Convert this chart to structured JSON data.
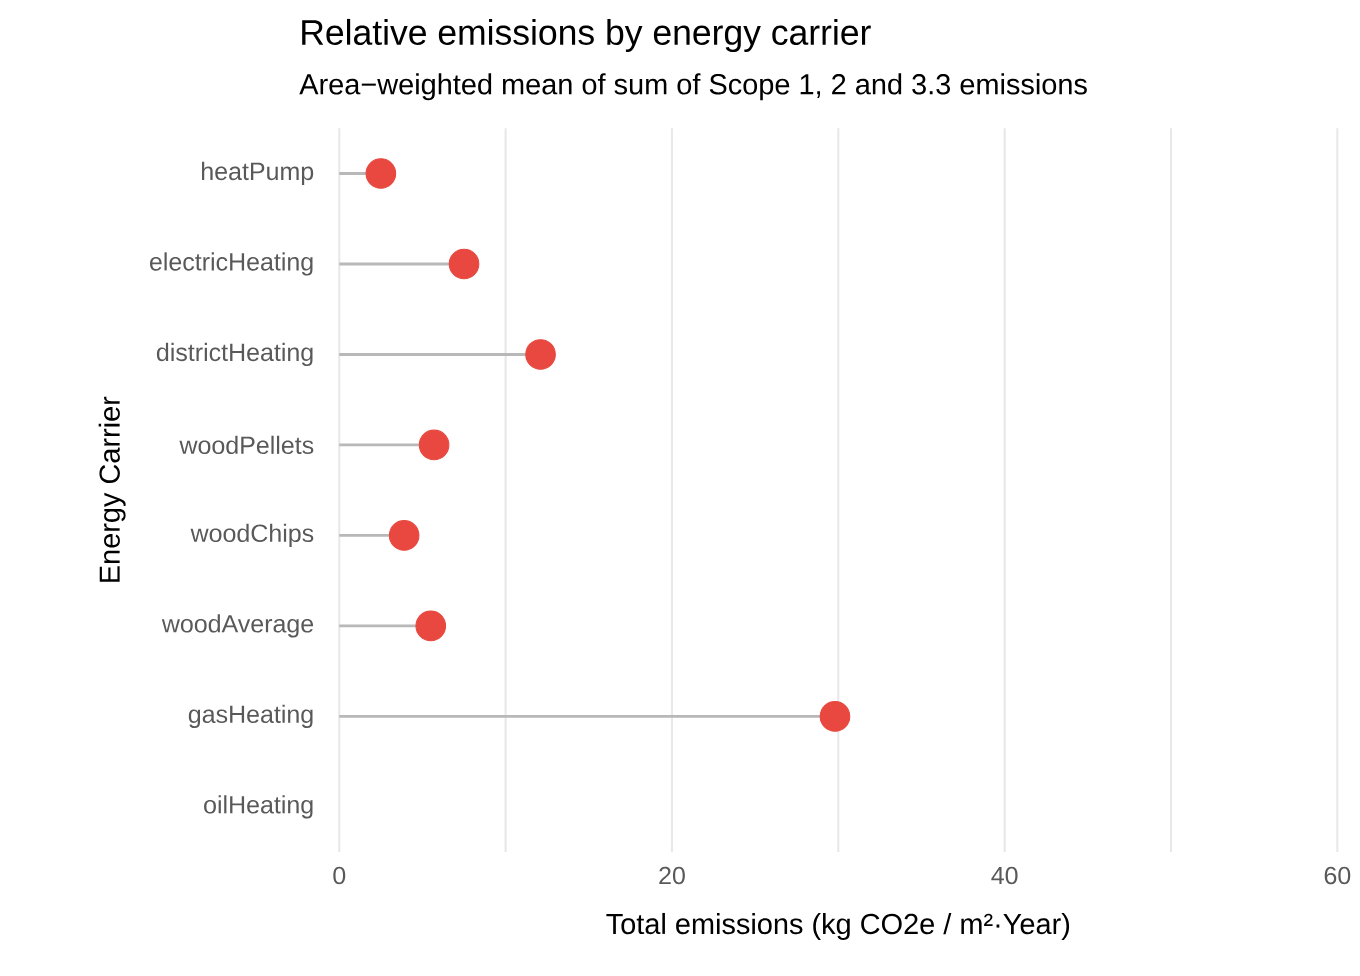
{
  "chart_data": {
    "type": "lollipop",
    "orientation": "horizontal",
    "title": "Relative emissions by energy carrier",
    "subtitle": "Area−weighted mean of sum of Scope 1, 2 and 3.3 emissions",
    "xlabel": "Total emissions (kg CO2e / m²·Year)",
    "ylabel": "Energy Carrier",
    "categories": [
      "heatPump",
      "electricHeating",
      "districtHeating",
      "woodPellets",
      "woodChips",
      "woodAverage",
      "gasHeating",
      "oilHeating"
    ],
    "values": [
      2.5,
      7.5,
      12.1,
      5.7,
      3.9,
      5.5,
      29.8,
      null
    ],
    "color": "#e8483f",
    "xlim": [
      0,
      60
    ],
    "xticks": [
      0,
      {
        "value": 10,
        "label": null
      },
      20,
      {
        "value": 30,
        "label": null
      },
      40,
      {
        "value": 50,
        "label": null
      },
      60
    ],
    "grid": "x",
    "marker": "circle"
  }
}
